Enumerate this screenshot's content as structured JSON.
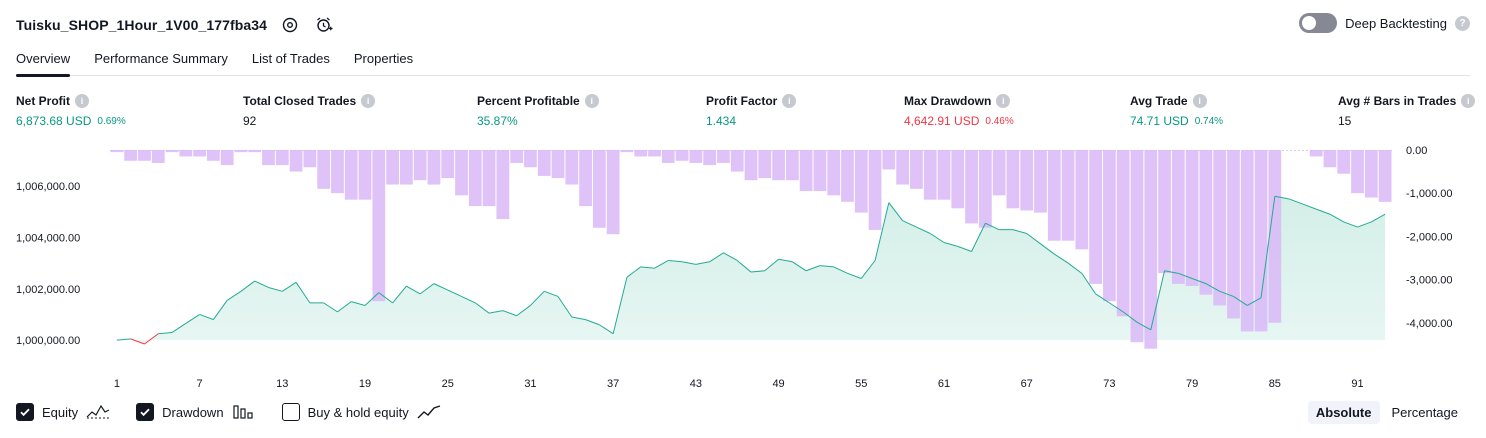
{
  "strategy": {
    "title": "Tuisku_SHOP_1Hour_1V00_177fba34"
  },
  "deep_backtesting": {
    "label": "Deep Backtesting",
    "enabled": false
  },
  "tabs": [
    {
      "label": "Overview",
      "active": true
    },
    {
      "label": "Performance Summary",
      "active": false
    },
    {
      "label": "List of Trades",
      "active": false
    },
    {
      "label": "Properties",
      "active": false
    }
  ],
  "metrics": {
    "net_profit": {
      "label": "Net Profit",
      "value": "6,873.68 USD",
      "pct": "0.69%"
    },
    "total_closed_trades": {
      "label": "Total Closed Trades",
      "value": "92"
    },
    "percent_profitable": {
      "label": "Percent Profitable",
      "value": "35.87%"
    },
    "profit_factor": {
      "label": "Profit Factor",
      "value": "1.434"
    },
    "max_drawdown": {
      "label": "Max Drawdown",
      "value": "4,642.91 USD",
      "pct": "0.46%"
    },
    "avg_trade": {
      "label": "Avg Trade",
      "value": "74.71 USD",
      "pct": "0.74%"
    },
    "avg_bars": {
      "label": "Avg # Bars in Trades",
      "value": "15"
    }
  },
  "legend": {
    "equity": {
      "label": "Equity",
      "checked": true
    },
    "drawdown": {
      "label": "Drawdown",
      "checked": true
    },
    "buy_hold": {
      "label": "Buy & hold equity",
      "checked": false
    }
  },
  "modes": {
    "absolute": "Absolute",
    "percentage": "Percentage",
    "selected": "Absolute"
  },
  "colors": {
    "equity_line": "#22ab94",
    "equity_negative": "#f23645",
    "equity_fill": "#d4efe8",
    "drawdown_bar": "#d9b8f7",
    "positive": "#089981",
    "negative": "#f23645"
  },
  "chart_data": {
    "type": "area",
    "x_ticks": [
      "1",
      "7",
      "13",
      "19",
      "25",
      "31",
      "37",
      "43",
      "49",
      "55",
      "61",
      "67",
      "73",
      "79",
      "85",
      "91"
    ],
    "y_left_ticks": [
      "1,000,000.00",
      "1,002,000.00",
      "1,004,000.00",
      "1,006,000.00"
    ],
    "y_right_ticks": [
      "0.00",
      "-1,000.00",
      "-2,000.00",
      "-3,000.00",
      "-4,000.00"
    ],
    "y_left_range": [
      999500,
      1007400
    ],
    "y_right_range": [
      -4700,
      0
    ],
    "x_range": [
      1,
      93
    ],
    "series": [
      {
        "name": "Equity",
        "x": [
          1,
          2,
          3,
          4,
          5,
          6,
          7,
          8,
          9,
          10,
          11,
          12,
          13,
          14,
          15,
          16,
          17,
          18,
          19,
          20,
          21,
          22,
          23,
          24,
          25,
          26,
          27,
          28,
          29,
          30,
          31,
          32,
          33,
          34,
          35,
          36,
          37,
          38,
          39,
          40,
          41,
          42,
          43,
          44,
          45,
          46,
          47,
          48,
          49,
          50,
          51,
          52,
          53,
          54,
          55,
          56,
          57,
          58,
          59,
          60,
          61,
          62,
          63,
          64,
          65,
          66,
          67,
          68,
          69,
          70,
          71,
          72,
          73,
          74,
          75,
          76,
          77,
          78,
          79,
          80,
          81,
          82,
          83,
          84,
          85,
          86,
          87,
          88,
          89,
          90,
          91,
          92,
          93
        ],
        "values": [
          1000000,
          1000050,
          999850,
          1000250,
          1000300,
          1000650,
          1001000,
          1000800,
          1001550,
          1001900,
          1002300,
          1002050,
          1001900,
          1002250,
          1001450,
          1001450,
          1001100,
          1001500,
          1001350,
          1001850,
          1001450,
          1002100,
          1001800,
          1002200,
          1001950,
          1001700,
          1001450,
          1001050,
          1001150,
          1000950,
          1001350,
          1001900,
          1001700,
          1000900,
          1000800,
          1000600,
          1000250,
          1002450,
          1002850,
          1002800,
          1003100,
          1003050,
          1002950,
          1003050,
          1003400,
          1003100,
          1002650,
          1002700,
          1003150,
          1003050,
          1002700,
          1002900,
          1002850,
          1002600,
          1002400,
          1003100,
          1005350,
          1004650,
          1004400,
          1004150,
          1003800,
          1003650,
          1003450,
          1004550,
          1004300,
          1004300,
          1004150,
          1003750,
          1003350,
          1003000,
          1002600,
          1001800,
          1001450,
          1001100,
          1000700,
          1000400,
          1002700,
          1002600,
          1002400,
          1002200,
          1001900,
          1001700,
          1001350,
          1001650,
          1005600,
          1005500,
          1005300,
          1005100,
          1004900,
          1004600,
          1004400,
          1004600,
          1004900
        ]
      },
      {
        "name": "Drawdown",
        "x": [
          1,
          2,
          3,
          4,
          5,
          6,
          7,
          8,
          9,
          10,
          11,
          12,
          13,
          14,
          15,
          16,
          17,
          18,
          19,
          20,
          21,
          22,
          23,
          24,
          25,
          26,
          27,
          28,
          29,
          30,
          31,
          32,
          33,
          34,
          35,
          36,
          37,
          38,
          39,
          40,
          41,
          42,
          43,
          44,
          45,
          46,
          47,
          48,
          49,
          50,
          51,
          52,
          53,
          54,
          55,
          56,
          57,
          58,
          59,
          60,
          61,
          62,
          63,
          64,
          65,
          66,
          67,
          68,
          69,
          70,
          71,
          72,
          73,
          74,
          75,
          76,
          77,
          78,
          79,
          80,
          81,
          82,
          83,
          84,
          85,
          86,
          87,
          88,
          89,
          90,
          91,
          92,
          93
        ],
        "values": [
          -50,
          -250,
          -250,
          -300,
          -50,
          -150,
          -150,
          -250,
          -350,
          -50,
          -50,
          -350,
          -350,
          -500,
          -400,
          -900,
          -1000,
          -1150,
          -1150,
          -3500,
          -800,
          -800,
          -700,
          -800,
          -650,
          -1050,
          -1300,
          -1300,
          -1600,
          -300,
          -400,
          -600,
          -650,
          -800,
          -1300,
          -1800,
          -1950,
          -50,
          -150,
          -150,
          -300,
          -250,
          -300,
          -350,
          -300,
          -500,
          -700,
          -650,
          -700,
          -700,
          -950,
          -950,
          -1050,
          -1200,
          -1450,
          -1850,
          -450,
          -800,
          -900,
          -1150,
          -1150,
          -1350,
          -1700,
          -1800,
          -1050,
          -1350,
          -1400,
          -1450,
          -2100,
          -2100,
          -2300,
          -3100,
          -3500,
          -3850,
          -4450,
          -4600,
          -2850,
          -3100,
          -3150,
          -3350,
          -3600,
          -3900,
          -4200,
          -4200,
          -4000,
          0,
          0,
          -150,
          -400,
          -550,
          -1000,
          -1100,
          -1200
        ]
      }
    ]
  }
}
